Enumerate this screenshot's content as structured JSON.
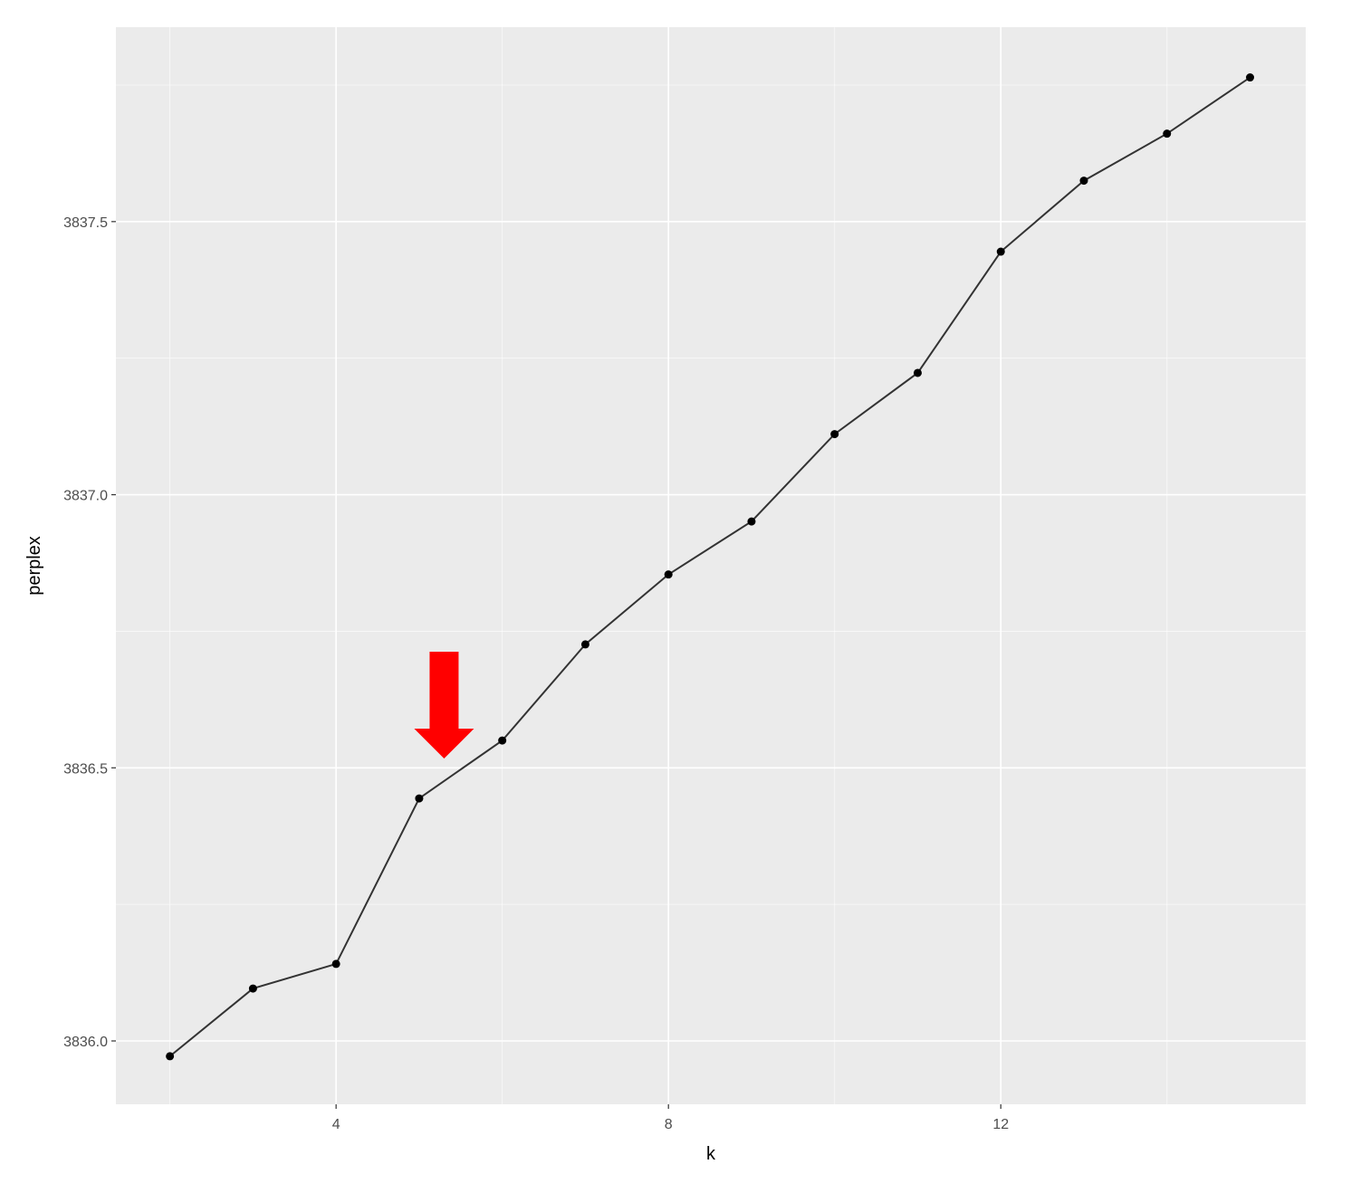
{
  "chart_data": {
    "type": "line",
    "title": "",
    "xlabel": "k",
    "ylabel": "perplex",
    "xlim": [
      1.35,
      15.67
    ],
    "ylim": [
      3835.884,
      3837.856
    ],
    "x_ticks": [
      4,
      8,
      12
    ],
    "x_tick_labels": [
      "4",
      "8",
      "12"
    ],
    "y_ticks": [
      3836.0,
      3836.5,
      3837.0,
      3837.5
    ],
    "y_tick_labels": [
      "3836.0",
      "3836.5",
      "3837.0",
      "3837.5"
    ],
    "grid": true,
    "x": [
      2,
      3,
      4,
      5,
      6,
      7,
      8,
      9,
      10,
      11,
      12,
      13,
      14,
      15
    ],
    "series": [
      {
        "values": [
          3835.972,
          3836.096,
          3836.141,
          3836.444,
          3836.55,
          3836.726,
          3836.854,
          3836.951,
          3837.111,
          3837.223,
          3837.445,
          3837.575,
          3837.661,
          3837.764
        ]
      }
    ],
    "annotations": [
      {
        "type": "arrow",
        "direction": "down",
        "color": "#ff0000",
        "points_to_k": 5.3
      }
    ],
    "colors": {
      "panel": "#ebebeb",
      "grid": "#ffffff",
      "line": "#000000",
      "arrow": "#ff0000"
    }
  }
}
